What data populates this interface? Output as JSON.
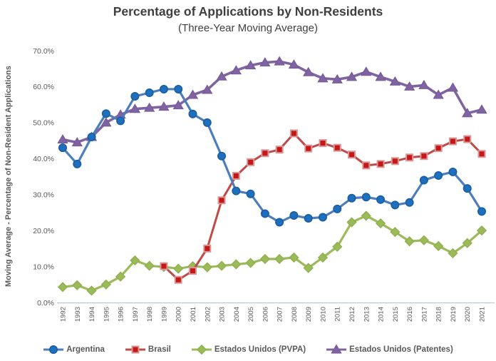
{
  "chart": {
    "title": "Percentage of Applications by Non-Residents",
    "subtitle": "(Three-Year Moving Average)",
    "y_axis_title": "Moving Average - Percentage of Non-Resident Applications"
  },
  "colors": {
    "title_text": "#3f3f3f",
    "axis_text": "#595959",
    "axis_line": "#b9c9d9",
    "argentina": "#4d7ebb",
    "brasil": "#be4b48",
    "pvpa": "#9bbb59",
    "patentes": "#8064a2"
  },
  "chart_data": {
    "type": "line",
    "title": "Percentage of Applications by Non-Residents",
    "subtitle": "(Three-Year Moving Average)",
    "xlabel": "",
    "ylabel": "Moving Average - Percentage of Non-Resident Applications",
    "ylim": [
      0,
      70
    ],
    "grid": false,
    "legend_position": "bottom",
    "yticks": [
      0,
      10,
      20,
      30,
      40,
      50,
      60,
      70
    ],
    "ytick_labels": [
      "0.0%",
      "10.0%",
      "20.0%",
      "30.0%",
      "40.0%",
      "50.0%",
      "60.0%",
      "70.0%"
    ],
    "x": [
      "1992",
      "1993",
      "1994",
      "1995",
      "1996",
      "1997",
      "1998",
      "1999",
      "2000",
      "2001",
      "2002",
      "2003",
      "2004",
      "2005",
      "2006",
      "2007",
      "2008",
      "2009",
      "2010",
      "2011",
      "2012",
      "2013",
      "2014",
      "2015",
      "2016",
      "2017",
      "2018",
      "2019",
      "2020",
      "2021"
    ],
    "series": [
      {
        "name": "Estados Unidos (PVPA)",
        "marker": "diamond",
        "line_color": "#9bbb59",
        "marker_fill": "#9bbb59",
        "marker_stroke": "#8fae50",
        "line_width": 3.2,
        "values": [
          4.3,
          4.8,
          3.3,
          5.0,
          7.2,
          11.7,
          10.2,
          9.9,
          9.4,
          10.1,
          9.8,
          10.2,
          10.6,
          11.0,
          12.1,
          12.1,
          12.5,
          9.6,
          12.5,
          15.5,
          22.3,
          24.1,
          22.0,
          19.6,
          17.0,
          17.3,
          15.7,
          13.7,
          16.5,
          20.0
        ]
      },
      {
        "name": "Brasil",
        "marker": "square",
        "line_color": "#be4b48",
        "marker_fill": "#c51718",
        "marker_stroke": "#d89694",
        "line_width": 3.0,
        "values": [
          null,
          null,
          null,
          null,
          null,
          null,
          null,
          10.1,
          6.3,
          8.8,
          15.0,
          28.4,
          35.2,
          39.0,
          41.5,
          42.5,
          47.0,
          42.8,
          44.3,
          43.0,
          41.1,
          38.1,
          38.5,
          39.3,
          40.3,
          40.7,
          42.9,
          44.8,
          45.4,
          41.3
        ]
      },
      {
        "name": "Estados Unidos (Patentes)",
        "marker": "triangle",
        "line_color": "#8064a2",
        "marker_fill": "#8064a2",
        "marker_stroke": "#75599a",
        "line_width": 3.6,
        "values": [
          45.3,
          44.5,
          46.0,
          50.0,
          52.2,
          53.8,
          54.1,
          54.4,
          54.8,
          57.7,
          59.1,
          62.8,
          64.5,
          65.9,
          66.7,
          67.0,
          66.1,
          64.0,
          62.3,
          62.0,
          62.7,
          64.1,
          62.7,
          61.4,
          60.0,
          60.4,
          57.7,
          59.7,
          52.6,
          53.6
        ]
      },
      {
        "name": "Argentina",
        "marker": "circle",
        "line_color": "#4d7ebb",
        "marker_fill": "#1f6fc0",
        "marker_stroke": "#1a5e9e",
        "line_width": 3.2,
        "values": [
          43.0,
          38.5,
          46.0,
          52.5,
          50.5,
          57.3,
          58.3,
          59.3,
          59.3,
          52.4,
          50.0,
          40.7,
          31.0,
          30.2,
          24.7,
          22.3,
          24.2,
          23.4,
          23.7,
          26.0,
          29.0,
          29.3,
          28.6,
          27.1,
          27.8,
          34.0,
          35.3,
          36.3,
          31.7,
          25.3
        ]
      }
    ],
    "legend_order": [
      "Argentina",
      "Brasil",
      "Estados Unidos (PVPA)",
      "Estados Unidos (Patentes)"
    ]
  }
}
